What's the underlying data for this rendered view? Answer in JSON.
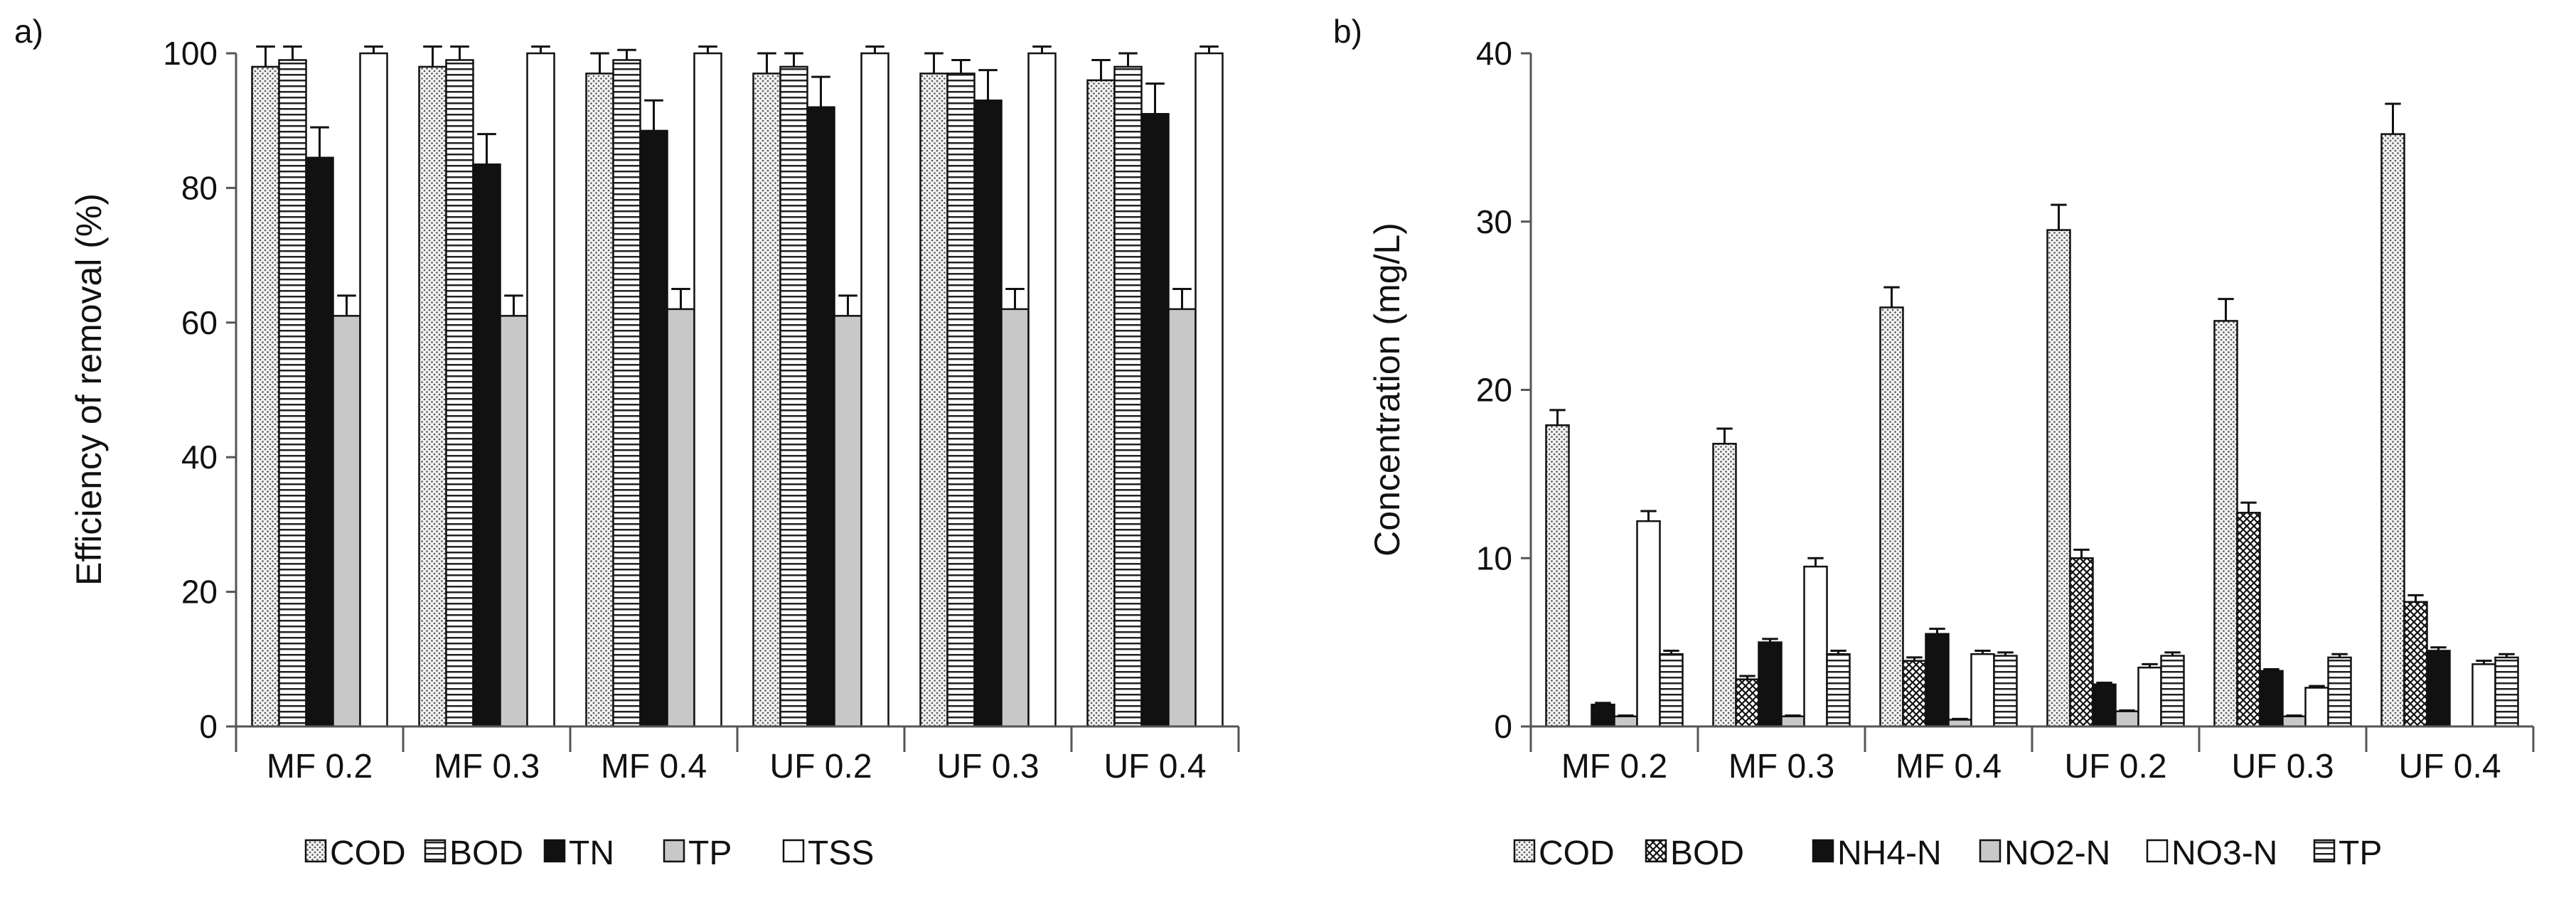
{
  "chart_data": [
    {
      "panel": "a)",
      "type": "bar",
      "title": "",
      "xlabel": "",
      "ylabel": "Efficiency of removal (%)",
      "ylim": [
        0,
        100
      ],
      "yticks": [
        0,
        20,
        40,
        60,
        80,
        100
      ],
      "grid": false,
      "legend_position": "bottom",
      "categories": [
        "MF 0.2",
        "MF 0.3",
        "MF 0.4",
        "UF 0.2",
        "UF 0.3",
        "UF 0.4"
      ],
      "series": [
        {
          "name": "COD",
          "pattern": "dots",
          "values": [
            98,
            98,
            97,
            97,
            97,
            96
          ],
          "errors": [
            3,
            3,
            3,
            3,
            3,
            3
          ]
        },
        {
          "name": "BOD",
          "pattern": "hlines",
          "values": [
            99,
            99,
            99,
            98,
            97,
            98
          ],
          "errors": [
            2,
            2,
            1.5,
            2,
            2,
            2
          ]
        },
        {
          "name": "TN",
          "pattern": "black",
          "values": [
            84.5,
            83.5,
            88.5,
            92,
            93,
            91
          ],
          "errors": [
            4.5,
            4.5,
            4.5,
            4.5,
            4.5,
            4.5
          ]
        },
        {
          "name": "TP",
          "pattern": "grey",
          "values": [
            61,
            61,
            62,
            61,
            62,
            62
          ],
          "errors": [
            3,
            3,
            3,
            3,
            3,
            3
          ]
        },
        {
          "name": "TSS",
          "pattern": "white",
          "values": [
            100,
            100,
            100,
            100,
            100,
            100
          ],
          "errors": [
            2,
            2,
            2,
            2,
            2,
            2
          ]
        }
      ]
    },
    {
      "panel": "b)",
      "type": "bar",
      "title": "",
      "xlabel": "",
      "ylabel": "Concentration (mg/L)",
      "ylim": [
        0,
        40
      ],
      "yticks": [
        0,
        10,
        20,
        30,
        40
      ],
      "grid": false,
      "legend_position": "bottom",
      "categories": [
        "MF 0.2",
        "MF 0.3",
        "MF 0.4",
        "UF 0.2",
        "UF 0.3",
        "UF 0.4"
      ],
      "series": [
        {
          "name": "COD",
          "pattern": "dots",
          "values": [
            17.9,
            16.8,
            24.9,
            29.5,
            24.1,
            35.2
          ],
          "errors": [
            0.9,
            0.9,
            1.2,
            1.5,
            1.3,
            1.8
          ]
        },
        {
          "name": "BOD",
          "pattern": "checker",
          "values": [
            0,
            2.8,
            3.9,
            10,
            12.7,
            7.4
          ],
          "errors": [
            0,
            0.2,
            0.2,
            0.5,
            0.6,
            0.4
          ]
        },
        {
          "name": "NH4-N",
          "pattern": "black",
          "values": [
            1.3,
            5,
            5.5,
            2.5,
            3.3,
            4.5
          ],
          "errors": [
            0.1,
            0.2,
            0.3,
            0.1,
            0.1,
            0.2
          ]
        },
        {
          "name": "NO2-N",
          "pattern": "grey",
          "values": [
            0.6,
            0.6,
            0.4,
            0.9,
            0.6,
            0
          ],
          "errors": [
            0.05,
            0.05,
            0.05,
            0.05,
            0.05,
            0
          ]
        },
        {
          "name": "NO3-N",
          "pattern": "white",
          "values": [
            12.2,
            9.5,
            4.3,
            3.5,
            2.3,
            3.7
          ],
          "errors": [
            0.6,
            0.5,
            0.2,
            0.2,
            0.1,
            0.2
          ]
        },
        {
          "name": "TP",
          "pattern": "hlines",
          "values": [
            4.3,
            4.3,
            4.2,
            4.2,
            4.1,
            4.1
          ],
          "errors": [
            0.2,
            0.2,
            0.2,
            0.2,
            0.2,
            0.2
          ]
        }
      ]
    }
  ]
}
